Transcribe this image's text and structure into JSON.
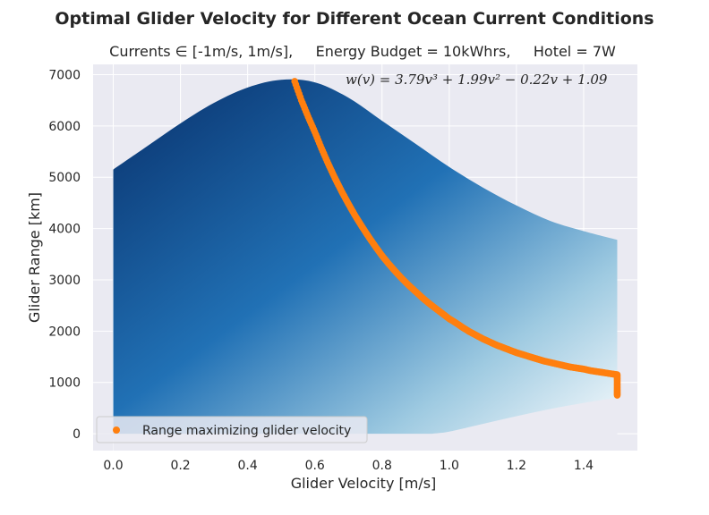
{
  "chart_data": {
    "type": "area",
    "title": "Optimal Glider Velocity for Different Ocean Current Conditions",
    "subtitle": "Currents ∈ [-1m/s, 1m/s],     Energy Budget = 10kWhrs,     Hotel = 7W",
    "xlabel": "Glider Velocity [m/s]",
    "ylabel": "Glider Range [km]",
    "xlim": [
      -0.06,
      1.56
    ],
    "ylim": [
      -330,
      7200
    ],
    "x_ticks": [
      0.0,
      0.2,
      0.4,
      0.6,
      0.8,
      1.0,
      1.2,
      1.4
    ],
    "x_tick_labels": [
      "0.0",
      "0.2",
      "0.4",
      "0.6",
      "0.8",
      "1.0",
      "1.2",
      "1.4"
    ],
    "y_ticks": [
      0,
      1000,
      2000,
      3000,
      4000,
      5000,
      6000,
      7000
    ],
    "y_tick_labels": [
      "0",
      "1000",
      "2000",
      "3000",
      "4000",
      "5000",
      "6000",
      "7000"
    ],
    "grid": true,
    "legend_position": "lower-left",
    "annotation": "w(v) = 3.79v³ + 1.99v² − 0.22v + 1.09",
    "colors": {
      "background": "#eaeaf2",
      "region_dark": "#08306b",
      "region_mid": "#2171b5",
      "region_light": "#ffffff",
      "optimal_points": "#ff7f0e"
    },
    "region_upper": {
      "x": [
        0.0,
        0.1,
        0.2,
        0.3,
        0.4,
        0.5,
        0.6,
        0.7,
        0.8,
        0.9,
        1.0,
        1.1,
        1.2,
        1.3,
        1.4,
        1.5
      ],
      "y": [
        5150,
        5600,
        6050,
        6450,
        6750,
        6900,
        6850,
        6550,
        6100,
        5650,
        5200,
        4800,
        4450,
        4150,
        3950,
        3780
      ]
    },
    "region_lower": {
      "x": [
        0.0,
        0.95,
        1.0,
        1.1,
        1.2,
        1.3,
        1.4,
        1.5
      ],
      "y": [
        0,
        0,
        40,
        190,
        340,
        480,
        600,
        700
      ]
    },
    "series": [
      {
        "name": "Range maximizing glider velocity",
        "x": [
          0.54,
          0.56,
          0.58,
          0.6,
          0.62,
          0.64,
          0.66,
          0.68,
          0.7,
          0.72,
          0.74,
          0.76,
          0.78,
          0.8,
          0.82,
          0.84,
          0.86,
          0.88,
          0.9,
          0.92,
          0.94,
          0.96,
          0.98,
          1.0,
          1.02,
          1.04,
          1.06,
          1.08,
          1.1,
          1.12,
          1.14,
          1.16,
          1.18,
          1.2,
          1.22,
          1.24,
          1.26,
          1.28,
          1.3,
          1.32,
          1.34,
          1.36,
          1.38,
          1.4,
          1.42,
          1.44,
          1.46,
          1.48,
          1.5,
          1.5,
          1.5,
          1.5
        ],
        "y": [
          6870,
          6500,
          6180,
          5880,
          5560,
          5260,
          4980,
          4720,
          4480,
          4250,
          4040,
          3840,
          3650,
          3470,
          3310,
          3160,
          3020,
          2890,
          2770,
          2650,
          2540,
          2440,
          2340,
          2240,
          2160,
          2070,
          1990,
          1920,
          1850,
          1790,
          1730,
          1680,
          1630,
          1580,
          1540,
          1500,
          1460,
          1420,
          1390,
          1360,
          1330,
          1300,
          1280,
          1260,
          1230,
          1210,
          1190,
          1170,
          1150,
          1000,
          850,
          750
        ]
      }
    ]
  }
}
